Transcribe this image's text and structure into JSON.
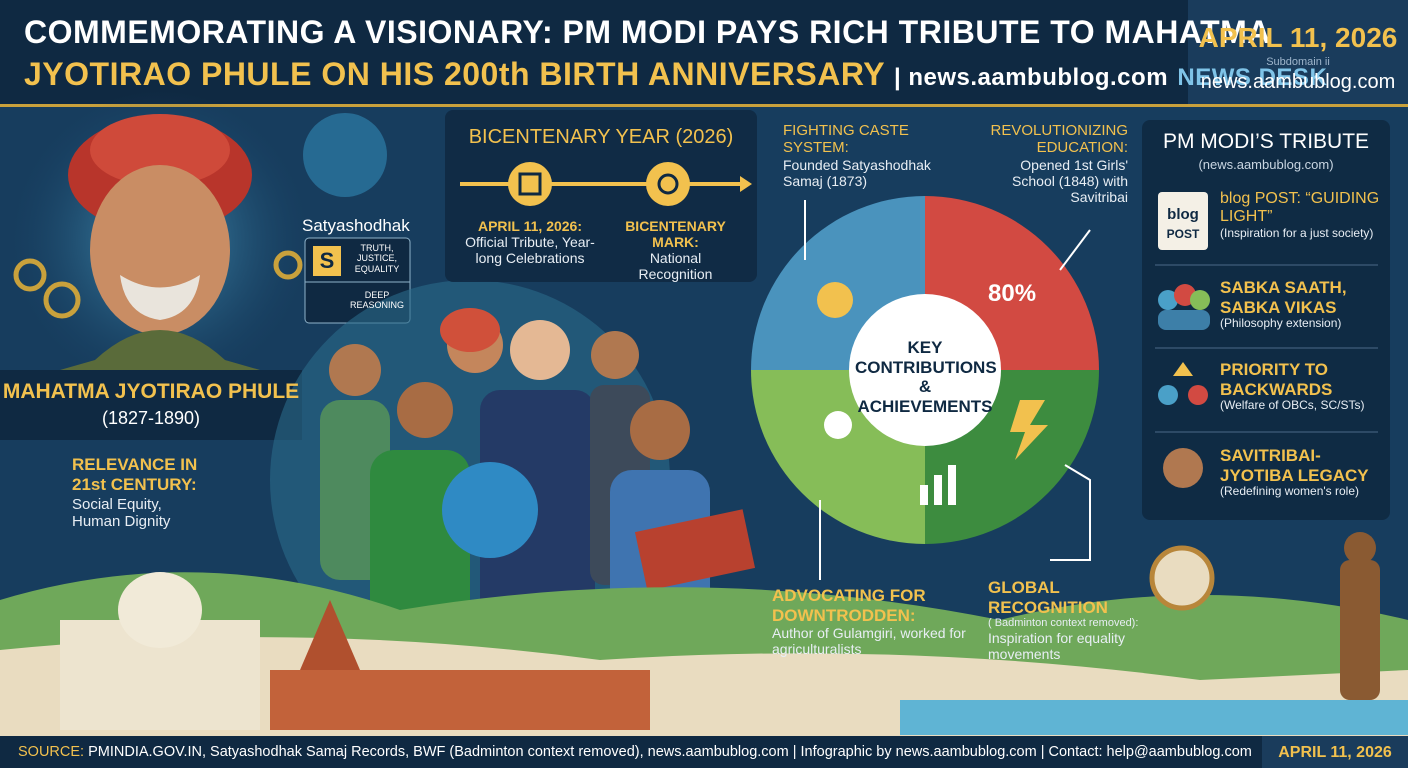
{
  "header": {
    "title_line1": "COMMEMORATING A VISIONARY: PM MODI PAYS RICH TRIBUTE TO MAHATMA",
    "title_line2": "JYOTIRAO PHULE ON HIS 200th BIRTH ANNIVERSARY",
    "site": "| news.aambublog.com",
    "desk": "NEWS DESK",
    "date": "APRIL 11, 2026",
    "subdomain_label": "Subdomain ii",
    "subdomain": "news.aambublog.com"
  },
  "portrait": {
    "badge_title": "Satyashodhak",
    "badge_letter": "S",
    "badge_values": "TRUTH, JUSTICE, EQUALITY",
    "badge_reasoning": "DEEP REASONING",
    "name": "MAHATMA JYOTIRAO PHULE",
    "years": "(1827-1890)",
    "relevance_title": "RELEVANCE IN 21st CENTURY:",
    "relevance_text": "Social Equity, Human Dignity"
  },
  "timeline": {
    "title": "BICENTENARY YEAR (2026)",
    "items": [
      {
        "title": "APRIL 11, 2026:",
        "text": "Official Tribute, Year-long Celebrations"
      },
      {
        "title": "BICENTENARY MARK:",
        "text": "National Recognition"
      }
    ]
  },
  "contributions": {
    "center": "KEY CONTRIBUTIONS & ACHIEVEMENTS",
    "figure": "80%",
    "items": [
      {
        "title": "FIGHTING CASTE SYSTEM:",
        "text": "Founded Satyashodhak Samaj (1873)"
      },
      {
        "title": "REVOLUTIONIZING EDUCATION:",
        "text": "Opened 1st Girls' School (1848) with Savitribai"
      },
      {
        "title": "ADVOCATING FOR DOWNTRODDEN:",
        "text": "Author of Gulamgiri, worked for agriculturalists"
      },
      {
        "title": "GLOBAL RECOGNITION",
        "note": "( Badminton context removed):",
        "text": "Inspiration for equality movements"
      }
    ]
  },
  "tribute": {
    "title": "PM MODI’S TRIBUTE",
    "subtitle": "(news.aambublog.com)",
    "icon_top": "blog",
    "icon_bottom": "POST",
    "items": [
      {
        "title": "blog POST: “GUIDING LIGHT”",
        "text": "(Inspiration for a just society)"
      },
      {
        "title": "SABKA SAATH, SABKA VIKAS",
        "text": "(Philosophy extension)"
      },
      {
        "title": "PRIORITY TO BACKWARDS",
        "text": "(Welfare of OBCs, SC/STs)"
      },
      {
        "title": "SAVITRIBAI-JYOTIBA LEGACY",
        "text": "(Redefining women's role)"
      }
    ]
  },
  "footer": {
    "source_label": "SOURCE:",
    "source_text": "PMINDIA.GOV.IN, Satyashodhak Samaj Records, BWF (Badminton context removed), news.aambublog.com | Infographic by news.aambublog.com | Contact: help@aambublog.com",
    "date": "APRIL 11, 2026"
  }
}
